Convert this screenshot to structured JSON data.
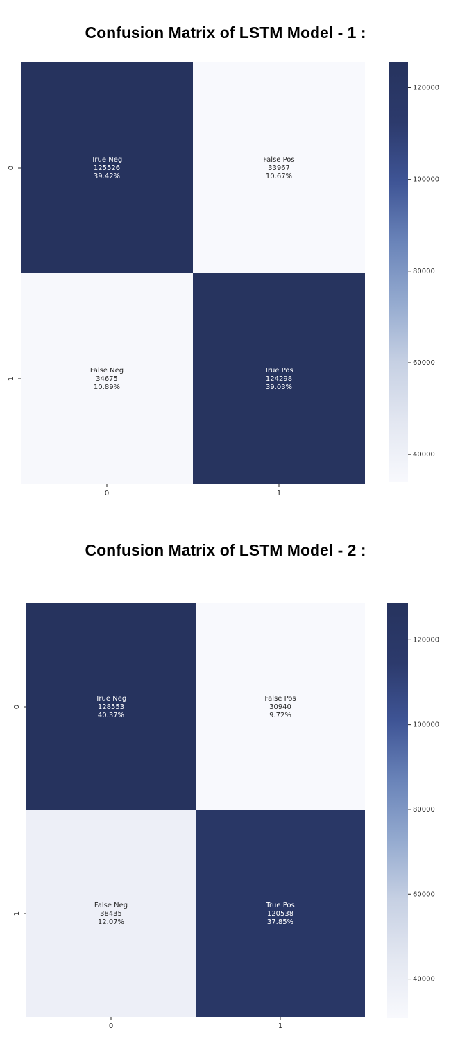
{
  "chart_data": [
    {
      "type": "heatmap",
      "title": "Confusion Matrix of LSTM Model - 1 :",
      "x_ticks": [
        "0",
        "1"
      ],
      "y_ticks": [
        "0",
        "1"
      ],
      "cells": [
        [
          {
            "label": "True Neg",
            "value": 125526,
            "value_text": "125526",
            "percent": "39.42%"
          },
          {
            "label": "False Pos",
            "value": 33967,
            "value_text": "33967",
            "percent": "10.67%"
          }
        ],
        [
          {
            "label": "False Neg",
            "value": 34675,
            "value_text": "34675",
            "percent": "10.89%"
          },
          {
            "label": "True Pos",
            "value": 124298,
            "value_text": "124298",
            "percent": "39.03%"
          }
        ]
      ],
      "colorbar": {
        "min": 33967,
        "max": 125526,
        "ticks": [
          40000,
          60000,
          80000,
          100000,
          120000
        ]
      },
      "colormap": [
        "#f8f9fd",
        "#e3e7f1",
        "#c6d0e3",
        "#94aacf",
        "#6a84b9",
        "#3f5596",
        "#2c3a6c",
        "#26335e"
      ]
    },
    {
      "type": "heatmap",
      "title": "Confusion Matrix of LSTM Model - 2 :",
      "x_ticks": [
        "0",
        "1"
      ],
      "y_ticks": [
        "0",
        "1"
      ],
      "cells": [
        [
          {
            "label": "True Neg",
            "value": 128553,
            "value_text": "128553",
            "percent": "40.37%"
          },
          {
            "label": "False Pos",
            "value": 30940,
            "value_text": "30940",
            "percent": "9.72%"
          }
        ],
        [
          {
            "label": "False Neg",
            "value": 38435,
            "value_text": "38435",
            "percent": "12.07%"
          },
          {
            "label": "True Pos",
            "value": 120538,
            "value_text": "120538",
            "percent": "37.85%"
          }
        ]
      ],
      "colorbar": {
        "min": 30940,
        "max": 128553,
        "ticks": [
          40000,
          60000,
          80000,
          100000,
          120000
        ]
      },
      "colormap": [
        "#f8f9fd",
        "#e3e7f1",
        "#c6d0e3",
        "#94aacf",
        "#6a84b9",
        "#3f5596",
        "#2c3a6c",
        "#26335e"
      ]
    }
  ]
}
